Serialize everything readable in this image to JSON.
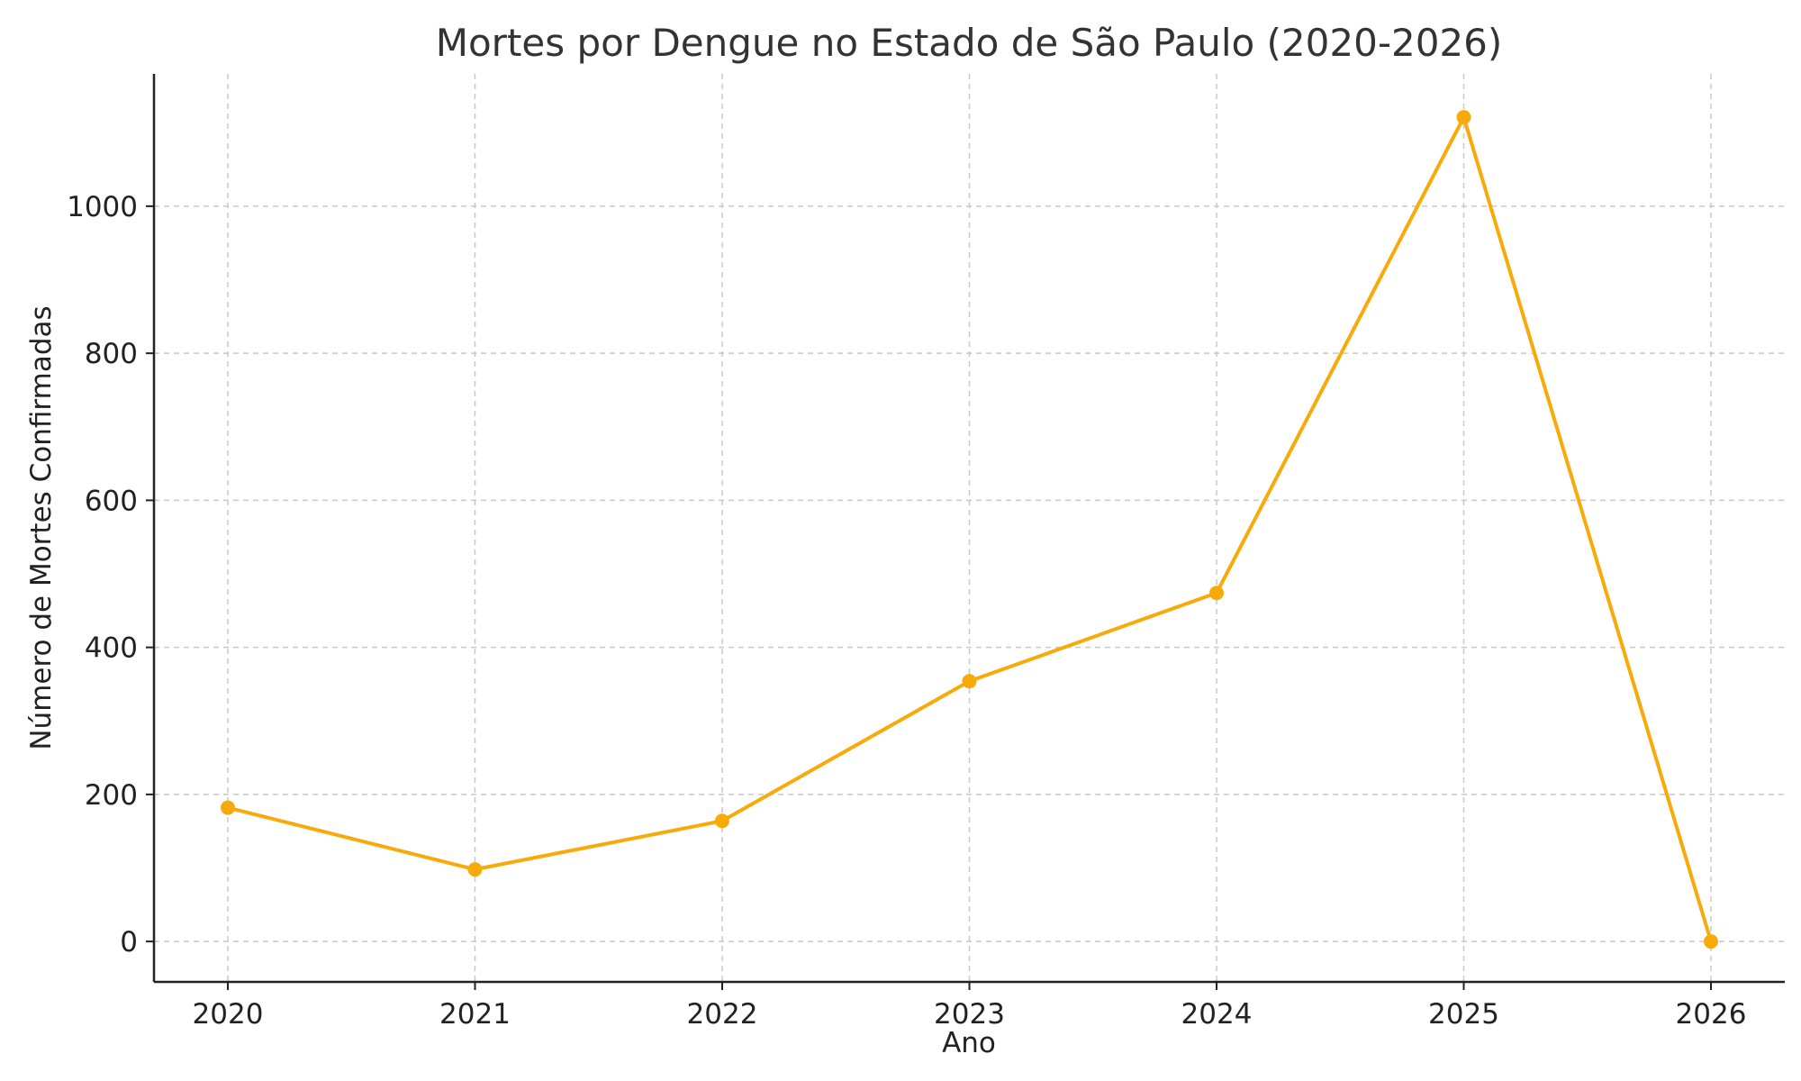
{
  "chart_data": {
    "type": "line",
    "title": "Mortes por Dengue no Estado de São Paulo (2020-2026)",
    "xlabel": "Ano",
    "ylabel": "Número de Mortes Confirmadas",
    "x": [
      "2020",
      "2021",
      "2022",
      "2023",
      "2024",
      "2025",
      "2026"
    ],
    "series": [
      {
        "values": [
          182,
          98,
          164,
          354,
          474,
          1121,
          0
        ],
        "color": "#F9AA0B"
      }
    ],
    "yticks": [
      0,
      200,
      400,
      600,
      800,
      1000
    ],
    "ylim": [
      -55,
      1180
    ],
    "grid": true,
    "marker": "circle"
  }
}
